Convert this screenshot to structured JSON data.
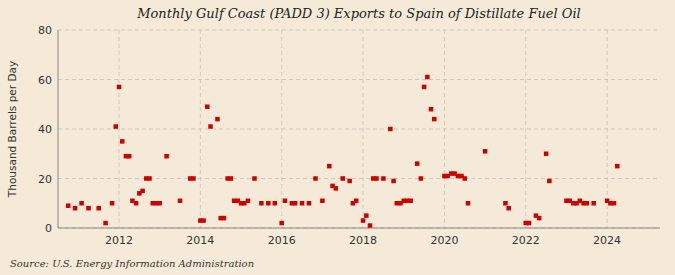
{
  "chart_data": {
    "type": "scatter",
    "title": "Monthly Gulf Coast (PADD 3) Exports to Spain of Distillate Fuel Oil",
    "ylabel": "Thousand Barrels per Day",
    "annotation": "Source: U.S. Energy Information Administration",
    "color": "#cc0000",
    "marker": "square",
    "grid": true,
    "xlim": [
      2010.5,
      2025.3
    ],
    "xticks": [
      2012,
      2014,
      2016,
      2018,
      2020,
      2022,
      2024
    ],
    "ylim": [
      0,
      80
    ],
    "yticks": [
      0,
      20,
      40,
      60,
      80
    ],
    "x": [
      2010.75,
      2010.92,
      2011.08,
      2011.25,
      2011.5,
      2011.67,
      2011.83,
      2011.92,
      2012.0,
      2012.08,
      2012.17,
      2012.25,
      2012.33,
      2012.42,
      2012.5,
      2012.58,
      2012.67,
      2012.75,
      2012.83,
      2012.92,
      2013.0,
      2013.17,
      2013.5,
      2013.75,
      2013.83,
      2014.0,
      2014.08,
      2014.17,
      2014.25,
      2014.42,
      2014.5,
      2014.58,
      2014.67,
      2014.75,
      2014.83,
      2014.92,
      2015.0,
      2015.08,
      2015.17,
      2015.33,
      2015.5,
      2015.67,
      2015.83,
      2016.0,
      2016.08,
      2016.25,
      2016.33,
      2016.5,
      2016.67,
      2016.83,
      2017.0,
      2017.17,
      2017.25,
      2017.33,
      2017.5,
      2017.67,
      2017.75,
      2017.83,
      2018.0,
      2018.08,
      2018.17,
      2018.25,
      2018.33,
      2018.5,
      2018.67,
      2018.75,
      2018.83,
      2018.92,
      2019.0,
      2019.08,
      2019.17,
      2019.33,
      2019.42,
      2019.5,
      2019.58,
      2019.67,
      2019.75,
      2020.0,
      2020.08,
      2020.17,
      2020.25,
      2020.33,
      2020.42,
      2020.5,
      2020.58,
      2021.0,
      2021.5,
      2021.58,
      2022.0,
      2022.08,
      2022.25,
      2022.33,
      2022.5,
      2022.58,
      2023.0,
      2023.08,
      2023.17,
      2023.25,
      2023.33,
      2023.42,
      2023.5,
      2023.67,
      2024.0,
      2024.08,
      2024.17,
      2024.25
    ],
    "values": [
      9,
      8,
      10,
      8,
      8,
      2,
      10,
      41,
      57,
      35,
      29,
      29,
      11,
      10,
      14,
      15,
      20,
      20,
      10,
      10,
      10,
      29,
      11,
      20,
      20,
      3,
      3,
      49,
      41,
      44,
      4,
      4,
      20,
      20,
      11,
      11,
      10,
      10,
      11,
      20,
      10,
      10,
      10,
      2,
      11,
      10,
      10,
      10,
      10,
      20,
      11,
      25,
      17,
      16,
      20,
      19,
      10,
      11,
      3,
      5,
      1,
      20,
      20,
      20,
      40,
      19,
      10,
      10,
      11,
      11,
      11,
      26,
      20,
      57,
      61,
      48,
      44,
      21,
      21,
      22,
      22,
      21,
      21,
      20,
      10,
      31,
      10,
      8,
      2,
      2,
      5,
      4,
      30,
      19,
      11,
      11,
      10,
      10,
      11,
      10,
      10,
      10,
      11,
      10,
      10,
      25
    ]
  }
}
